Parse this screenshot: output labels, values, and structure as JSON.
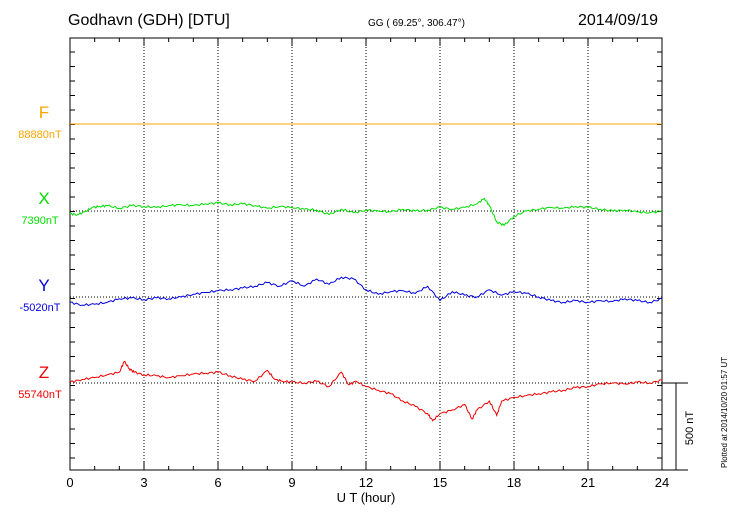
{
  "header": {
    "station": "Godhavn (GDH)  [DTU]",
    "coords": "GG ( 69.25°, 306.47°)",
    "date": "2014/09/19"
  },
  "footer_note": "Plotted at 2014/10/20 01:57 UT",
  "scale_bar_label": "500 nT",
  "colors": {
    "F": "#ffa500",
    "X": "#00dd00",
    "Y": "#0000dd",
    "Z": "#ee0000",
    "grid": "#000000"
  },
  "chart_data": {
    "type": "line",
    "title": "Godhavn (GDH)  [DTU]",
    "xlabel": "U T (hour)",
    "xlim": [
      0,
      24
    ],
    "xticks": [
      0,
      3,
      6,
      9,
      12,
      15,
      18,
      21,
      24
    ],
    "xtick_labels": [
      "0",
      "3",
      "6",
      "9",
      "12",
      "15",
      "18",
      "21",
      "24"
    ],
    "grid": true,
    "scale_nT": 500,
    "series": [
      {
        "name": "F",
        "baseline_label": "88880nT",
        "color": "#ffa500",
        "x": [
          0,
          24
        ],
        "y": [
          0,
          0
        ]
      },
      {
        "name": "X",
        "baseline_label": "7390nT",
        "color": "#00dd00",
        "x": [
          0,
          0.3,
          0.6,
          0.9,
          1.2,
          1.5,
          2,
          2.5,
          3,
          3.5,
          4,
          4.5,
          5,
          5.5,
          6,
          6.5,
          7,
          7.5,
          8,
          8.5,
          9,
          9.5,
          10,
          10.5,
          11,
          11.5,
          12,
          12.5,
          13,
          13.5,
          14,
          14.5,
          15,
          15.5,
          16,
          16.5,
          16.8,
          17,
          17.3,
          17.6,
          18,
          18.5,
          19,
          19.5,
          20,
          20.5,
          21,
          21.5,
          22,
          22.5,
          23,
          23.5,
          24
        ],
        "y": [
          -15,
          -20,
          -5,
          20,
          25,
          30,
          15,
          30,
          25,
          20,
          30,
          35,
          30,
          40,
          45,
          35,
          40,
          30,
          15,
          25,
          20,
          10,
          5,
          -20,
          10,
          -10,
          5,
          0,
          -5,
          10,
          0,
          5,
          20,
          10,
          20,
          40,
          70,
          30,
          -60,
          -80,
          -30,
          0,
          10,
          20,
          15,
          25,
          20,
          10,
          0,
          5,
          -5,
          -10,
          0
        ]
      },
      {
        "name": "Y",
        "baseline_label": "-5020nT",
        "color": "#0000dd",
        "x": [
          0,
          0.5,
          1,
          1.5,
          2,
          2.5,
          3,
          3.5,
          4,
          4.5,
          5,
          5.5,
          6,
          6.5,
          7,
          7.5,
          8,
          8.5,
          9,
          9.5,
          10,
          10.5,
          11,
          11.5,
          12,
          12.5,
          13,
          13.5,
          14,
          14.5,
          15,
          15.5,
          16,
          16.5,
          17,
          17.5,
          18,
          18.5,
          19,
          19.5,
          20,
          20.5,
          21,
          21.5,
          22,
          22.5,
          23,
          23.5,
          24
        ],
        "y": [
          -30,
          -45,
          -40,
          -30,
          -10,
          -5,
          -15,
          -5,
          -10,
          0,
          15,
          25,
          35,
          40,
          50,
          60,
          80,
          60,
          90,
          60,
          100,
          70,
          110,
          100,
          40,
          15,
          30,
          35,
          20,
          60,
          -20,
          30,
          10,
          0,
          40,
          10,
          30,
          20,
          0,
          -20,
          -30,
          -20,
          -30,
          -20,
          -25,
          -10,
          -20,
          -30,
          -10
        ]
      },
      {
        "name": "Z",
        "baseline_label": "55740nT",
        "color": "#ee0000",
        "x": [
          0,
          0.5,
          1,
          1.5,
          2,
          2.2,
          2.4,
          2.6,
          3,
          3.5,
          4,
          4.5,
          5,
          5.5,
          6,
          6.5,
          7,
          7.5,
          8,
          8.3,
          8.6,
          9,
          9.5,
          10,
          10.5,
          11,
          11.3,
          11.6,
          12,
          12.5,
          13,
          13.5,
          14,
          14.5,
          14.7,
          15,
          15.5,
          16,
          16.3,
          16.5,
          17,
          17.3,
          17.5,
          18,
          18.5,
          19,
          19.5,
          20,
          20.5,
          21,
          21.5,
          22,
          22.5,
          23,
          23.5,
          24
        ],
        "y": [
          5,
          20,
          30,
          45,
          60,
          120,
          80,
          60,
          45,
          40,
          30,
          40,
          50,
          55,
          60,
          40,
          20,
          10,
          70,
          20,
          10,
          5,
          0,
          10,
          -20,
          60,
          -10,
          10,
          -20,
          -40,
          -60,
          -100,
          -130,
          -170,
          -210,
          -170,
          -150,
          -120,
          -200,
          -150,
          -100,
          -180,
          -100,
          -80,
          -70,
          -60,
          -50,
          -40,
          -25,
          -20,
          -5,
          0,
          -5,
          5,
          0,
          15
        ]
      }
    ]
  }
}
